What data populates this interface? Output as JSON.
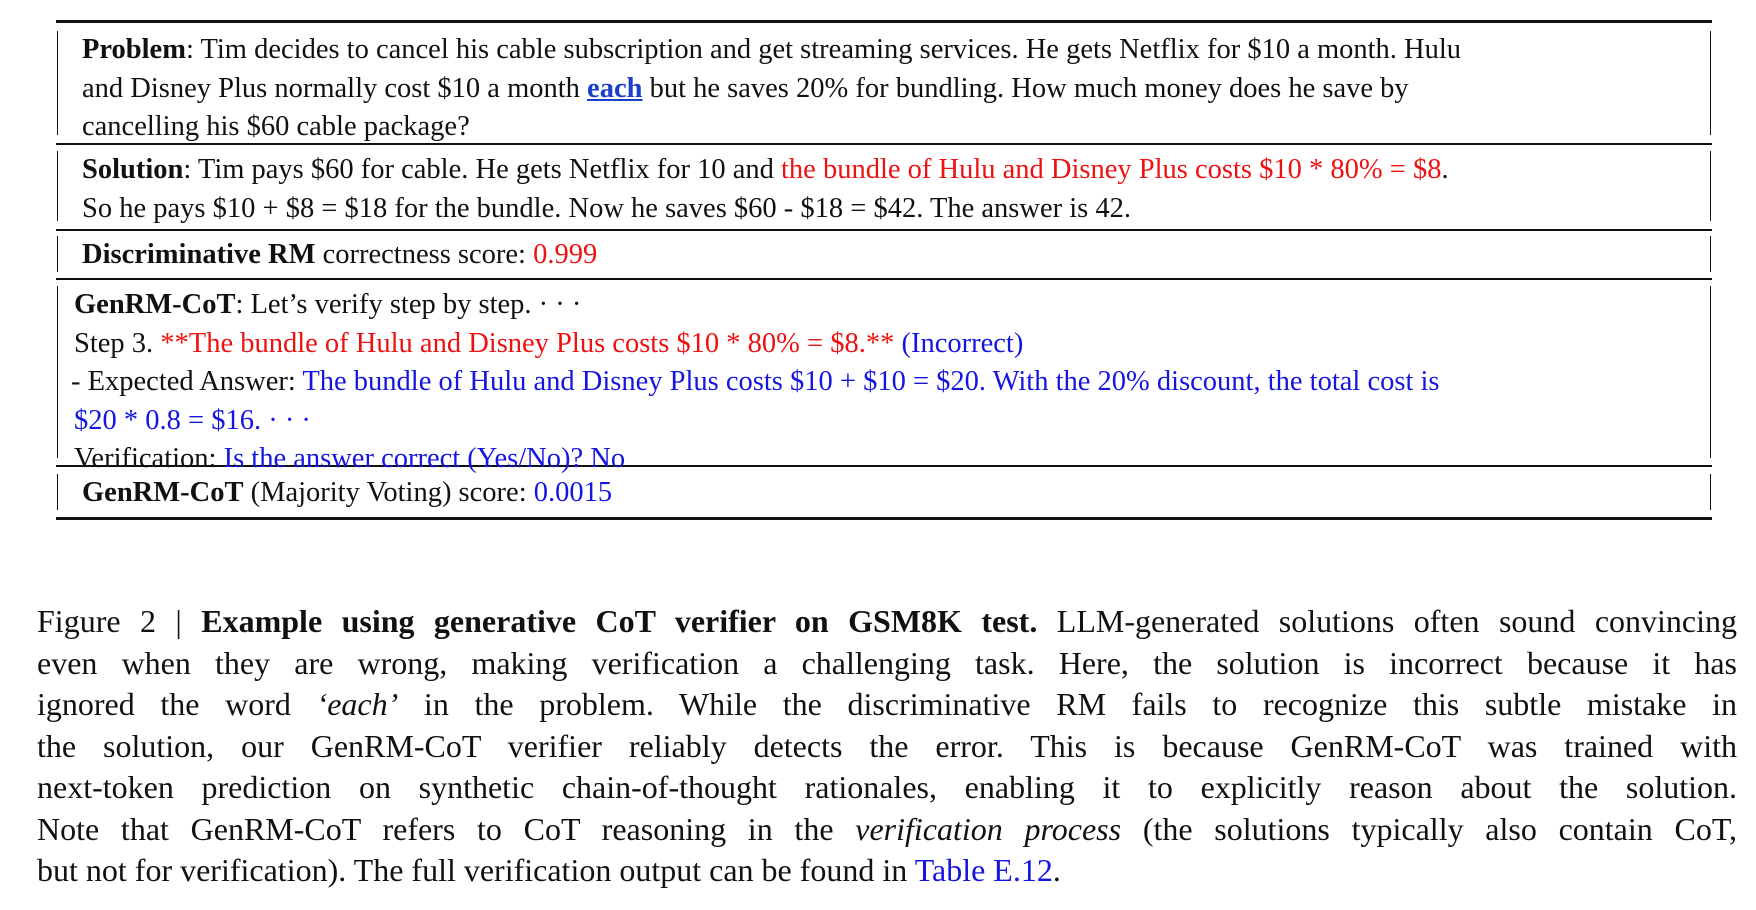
{
  "problem": {
    "label": "Problem",
    "text_line1": ": Tim decides to cancel his cable subscription and get streaming services. He gets Netflix for $10 a month. Hulu",
    "text_line2_a": "and Disney Plus normally cost $10 a month ",
    "emphasis": "each",
    "text_line2_b": " but he saves 20% for bundling. How much money does he save by",
    "text_line3": "cancelling his $60 cable package?"
  },
  "solution": {
    "label": "Solution",
    "line1_a": ": Tim pays $60 for cable. He gets Netflix for 10 and ",
    "line1_error": "the bundle of Hulu and Disney Plus costs $10 * 80% = $8",
    "line1_end": ".",
    "line2": "So he pays $10 + $8 = $18 for the bundle. Now he saves $60 - $18 = $42. The answer is 42."
  },
  "discriminative": {
    "label": "Discriminative RM",
    "text": " correctness score: ",
    "score": "0.999"
  },
  "genrm": {
    "label": "GenRM-CoT",
    "intro": ": Let’s verify step by step. · · ·",
    "step_prefix": "Step 3. ",
    "step_quote": "**The bundle of Hulu and Disney Plus costs $10 * 80% = $8.**",
    "step_verdict": " (Incorrect)",
    "expected_prefix": "- Expected Answer: ",
    "expected_line1": "The bundle of Hulu and Disney Plus costs $10 + $10 = $20. With the 20% discount, the total cost is",
    "expected_line2": "$20 * 0.8 = $16. · · ·",
    "verification_prefix": "Verification: ",
    "verification_text": "Is the answer correct (Yes/No)? No"
  },
  "majority": {
    "label": "GenRM-CoT",
    "text": " (Majority Voting) score: ",
    "score": "0.0015"
  },
  "caption": {
    "figure_label": "Figure 2 | ",
    "title": "Example using generative CoT verifier on GSM8K test",
    "title_end": ".",
    "line1_rest": " LLM-generated solutions often sound convincing",
    "line2": "even when they are wrong, making verification a challenging task. Here, the solution is incorrect because it has",
    "line3_a": "ignored the word ",
    "line3_quote": "‘each’",
    "line3_b": " in the problem. While the discriminative RM fails to recognize this subtle mistake in",
    "line4": "the solution, our GenRM-CoT verifier reliably detects the error. This is because GenRM-CoT was trained with",
    "line5": "next-token prediction on synthetic chain-of-thought rationales, enabling it to explicitly reason about the solution.",
    "line6_a": "Note that GenRM-CoT refers to CoT reasoning in the ",
    "line6_italic": "verification process",
    "line6_b": " (the solutions typically also contain CoT,",
    "line7_a": "but not for verification). The full verification output can be found in ",
    "table_ref": "Table E.12",
    "line7_end": "."
  },
  "colors": {
    "error_red": "#ee1111",
    "verifier_blue": "#1515e0",
    "link_blue": "#1b3fc8"
  }
}
